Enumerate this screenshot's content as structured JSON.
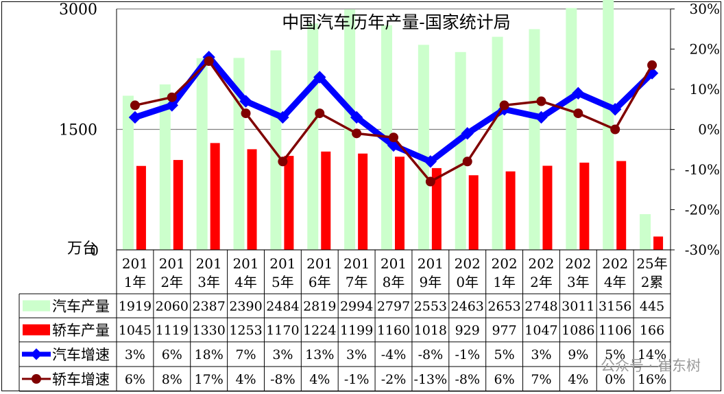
{
  "chart_data": {
    "type": "bar",
    "title": "中国汽车历年产量-国家统计局",
    "unit_label": "万台",
    "categories": [
      "2011年",
      "2012年",
      "2013年",
      "2014年",
      "2015年",
      "2016年",
      "2017年",
      "2018年",
      "2019年",
      "2020年",
      "2021年",
      "2022年",
      "2023年",
      "2024年",
      "25年2累"
    ],
    "y_left": {
      "min": 0,
      "max": 3000,
      "ticks": [
        "0",
        "1500",
        "3000"
      ]
    },
    "y_right": {
      "min": -30,
      "max": 30,
      "ticks": [
        "-30%",
        "-20%",
        "-10%",
        "0%",
        "10%",
        "20%",
        "30%"
      ]
    },
    "series": [
      {
        "name": "汽车产量",
        "type": "bar",
        "axis": "left",
        "color": "#ccffcc",
        "values": [
          1919,
          2060,
          2387,
          2390,
          2484,
          2819,
          2994,
          2797,
          2553,
          2463,
          2653,
          2748,
          3011,
          3156,
          445
        ]
      },
      {
        "name": "轿车产量",
        "type": "bar",
        "axis": "left",
        "color": "#ff0000",
        "values": [
          1045,
          1119,
          1330,
          1253,
          1170,
          1224,
          1199,
          1160,
          1018,
          929,
          977,
          1047,
          1086,
          1106,
          166
        ]
      },
      {
        "name": "汽车增速",
        "type": "line",
        "axis": "right",
        "color": "#0000ff",
        "values": [
          3,
          6,
          18,
          7,
          3,
          13,
          3,
          -4,
          -8,
          -1,
          5,
          3,
          9,
          5,
          14
        ]
      },
      {
        "name": "轿车增速",
        "type": "line",
        "axis": "right",
        "color": "#800000",
        "values": [
          6,
          8,
          17,
          4,
          -8,
          4,
          -1,
          -2,
          -13,
          -8,
          6,
          7,
          4,
          0,
          16
        ]
      }
    ],
    "table": {
      "rows": [
        [
          "1919",
          "2060",
          "2387",
          "2390",
          "2484",
          "2819",
          "2994",
          "2797",
          "2553",
          "2463",
          "2653",
          "2748",
          "3011",
          "3156",
          "445"
        ],
        [
          "1045",
          "1119",
          "1330",
          "1253",
          "1170",
          "1224",
          "1199",
          "1160",
          "1018",
          "929",
          "977",
          "1047",
          "1086",
          "1106",
          "166"
        ],
        [
          "3%",
          "6%",
          "18%",
          "7%",
          "3%",
          "13%",
          "3%",
          "-4%",
          "-8%",
          "-1%",
          "5%",
          "3%",
          "9%",
          "5%",
          "14%"
        ],
        [
          "6%",
          "8%",
          "17%",
          "4%",
          "-8%",
          "4%",
          "-1%",
          "-2%",
          "-13%",
          "-8%",
          "6%",
          "7%",
          "4%",
          "0%",
          "16%"
        ]
      ]
    },
    "watermark": "公众号 · 崔东树"
  }
}
